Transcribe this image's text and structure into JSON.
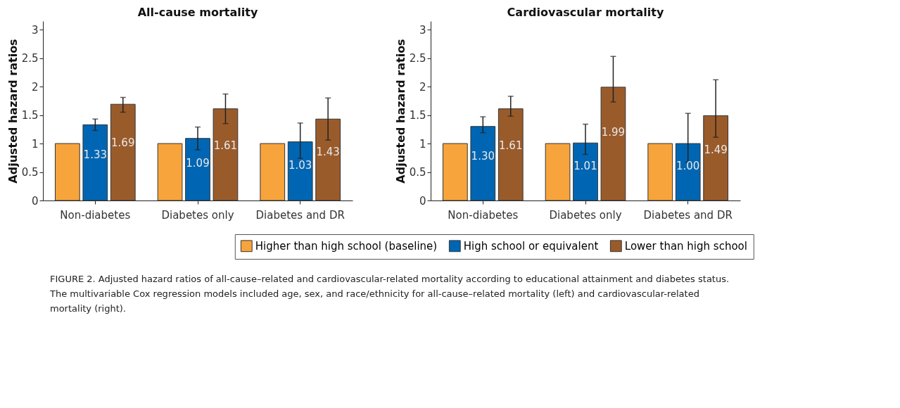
{
  "chart_data": [
    {
      "type": "bar",
      "title": "All-cause mortality",
      "ylabel": "Adjusted hazard ratios",
      "categories": [
        "Non-diabetes",
        "Diabetes only",
        "Diabetes and DR"
      ],
      "ylim": [
        0,
        3.15
      ],
      "yticks": [
        0,
        0.5,
        1,
        1.5,
        2,
        2.5,
        3
      ],
      "grid": false,
      "legend": "bottom",
      "series": [
        {
          "name": "Higher than high school (baseline)",
          "color": "#f7a43c",
          "values": [
            1,
            1,
            1
          ]
        },
        {
          "name": "High school or equivalent",
          "color": "#0066b3",
          "values": [
            1.33,
            1.09,
            1.03
          ],
          "errors": [
            [
              1.23,
              1.43
            ],
            [
              0.89,
              1.29
            ],
            [
              0.74,
              1.36
            ]
          ],
          "value_labels": [
            "1.33",
            "1.09",
            "1.03"
          ]
        },
        {
          "name": "Lower than high school",
          "color": "#9a5b2b",
          "values": [
            1.69,
            1.61,
            1.43
          ],
          "errors": [
            [
              1.55,
              1.81
            ],
            [
              1.35,
              1.87
            ],
            [
              1.06,
              1.8
            ]
          ],
          "value_labels": [
            "1.69",
            "1.61",
            "1.43"
          ]
        }
      ],
      "annotations": [
        "FIGURE 2. Adjusted hazard ratios of all-cause–related and cardiovascular-related mortality according to educational attainment and diabetes status. The multivariable Cox regression models included age, sex, and race/ethnicity for all-cause–related mortality (left) and cardiovascular-related mortality (right)."
      ]
    },
    {
      "type": "bar",
      "title": "Cardiovascular mortality",
      "ylabel": "Adjusted hazard ratios",
      "categories": [
        "Non-diabetes",
        "Diabetes only",
        "Diabetes and DR"
      ],
      "ylim": [
        0,
        3.15
      ],
      "yticks": [
        0,
        0.5,
        1,
        1.5,
        2,
        2.5,
        3
      ],
      "grid": false,
      "legend": "bottom",
      "series": [
        {
          "name": "Higher than high school (baseline)",
          "color": "#f7a43c",
          "values": [
            1,
            1,
            1
          ]
        },
        {
          "name": "High school or equivalent",
          "color": "#0066b3",
          "values": [
            1.3,
            1.01,
            1.0
          ],
          "errors": [
            [
              1.19,
              1.47
            ],
            [
              0.81,
              1.34
            ],
            [
              0.67,
              1.53
            ]
          ],
          "value_labels": [
            "1.30",
            "1.01",
            "1.00"
          ]
        },
        {
          "name": "Lower than high school",
          "color": "#9a5b2b",
          "values": [
            1.61,
            1.99,
            1.49
          ],
          "errors": [
            [
              1.48,
              1.83
            ],
            [
              1.73,
              2.53
            ],
            [
              1.11,
              2.12
            ]
          ],
          "value_labels": [
            "1.61",
            "1.99",
            "1.49"
          ]
        }
      ]
    }
  ]
}
